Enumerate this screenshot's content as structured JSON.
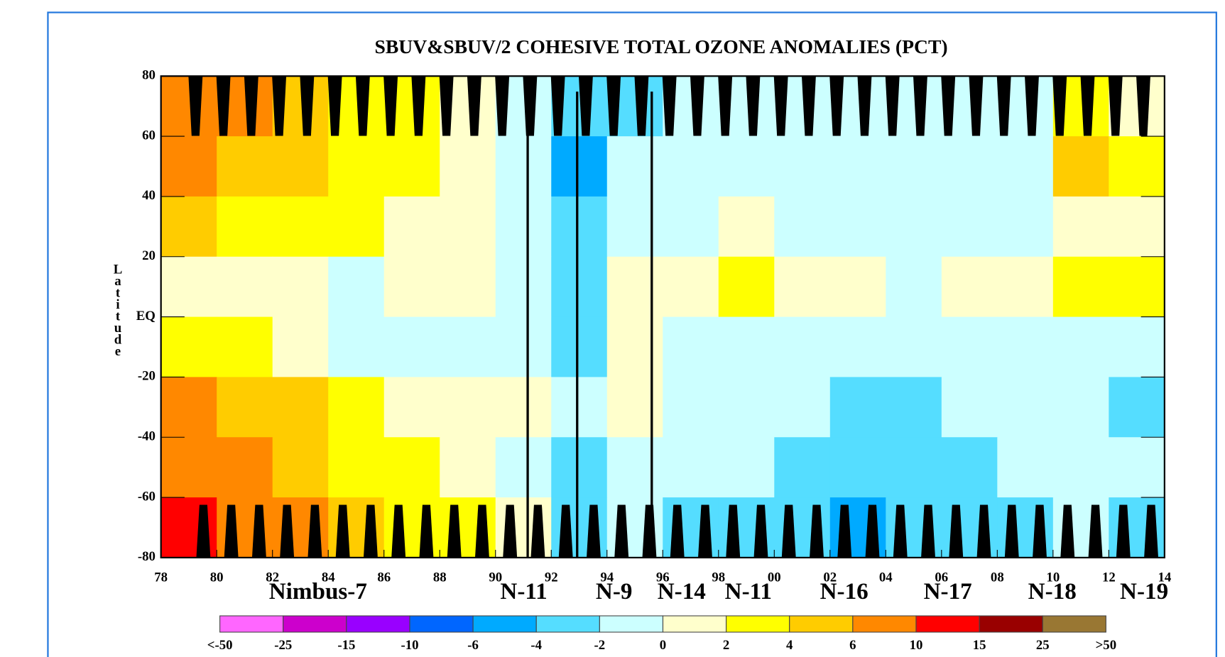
{
  "chart_data": {
    "type": "heatmap",
    "title": "SBUV&SBUV/2 COHESIVE TOTAL OZONE ANOMALIES (PCT)",
    "y_label": "Latitude",
    "xlim": [
      1978,
      2014
    ],
    "ylim": [
      -80,
      80
    ],
    "xticks": [
      {
        "value": 1978,
        "label": "78"
      },
      {
        "value": 1980,
        "label": "80"
      },
      {
        "value": 1982,
        "label": "82"
      },
      {
        "value": 1984,
        "label": "84"
      },
      {
        "value": 1986,
        "label": "86"
      },
      {
        "value": 1988,
        "label": "88"
      },
      {
        "value": 1990,
        "label": "90"
      },
      {
        "value": 1992,
        "label": "92"
      },
      {
        "value": 1994,
        "label": "94"
      },
      {
        "value": 1996,
        "label": "96"
      },
      {
        "value": 1998,
        "label": "98"
      },
      {
        "value": 2000,
        "label": "00"
      },
      {
        "value": 2002,
        "label": "02"
      },
      {
        "value": 2004,
        "label": "04"
      },
      {
        "value": 2006,
        "label": "06"
      },
      {
        "value": 2008,
        "label": "08"
      },
      {
        "value": 2010,
        "label": "10"
      },
      {
        "value": 2012,
        "label": "12"
      },
      {
        "value": 2014,
        "label": "14"
      }
    ],
    "yticks": [
      80,
      60,
      40,
      20,
      {
        "value": 0,
        "label": "EQ"
      },
      -20,
      -40,
      -60,
      -80
    ],
    "x": [
      1979,
      1981,
      1983,
      1985,
      1987,
      1989,
      1991,
      1993,
      1995,
      1997,
      1999,
      2001,
      2003,
      2005,
      2007,
      2009,
      2011,
      2013
    ],
    "y": [
      70,
      50,
      30,
      10,
      -10,
      -30,
      -50,
      -70
    ],
    "z": [
      [
        6,
        6,
        4,
        2,
        3,
        1,
        -1,
        -3,
        -4,
        -2,
        -1,
        -2,
        -2,
        -1,
        -2,
        -1,
        2,
        1
      ],
      [
        6,
        5,
        4,
        2,
        2,
        1,
        -2,
        -5,
        -2,
        -2,
        -2,
        -1,
        -2,
        -2,
        -1,
        -2,
        4,
        2
      ],
      [
        4,
        3,
        2,
        2,
        1,
        0,
        -2,
        -4,
        -1,
        -2,
        0,
        -2,
        -1,
        -1,
        -2,
        -1,
        0,
        1
      ],
      [
        1,
        0,
        0,
        -1,
        0,
        1,
        -2,
        -3,
        0,
        1,
        2,
        1,
        0,
        -1,
        0,
        1,
        2,
        2
      ],
      [
        2,
        2,
        0,
        -1,
        -1,
        -1,
        -1,
        -3,
        0,
        -1,
        -2,
        -1,
        -1,
        -2,
        -2,
        -1,
        -1,
        -2
      ],
      [
        6,
        4,
        4,
        2,
        1,
        1,
        0,
        -2,
        0,
        -1,
        -2,
        -2,
        -3,
        -3,
        -2,
        -2,
        -2,
        -3
      ],
      [
        8,
        6,
        5,
        3,
        2,
        1,
        -1,
        -3,
        -1,
        -2,
        -2,
        -3,
        -4,
        -3,
        -3,
        -2,
        -2,
        -2
      ],
      [
        10,
        7,
        6,
        4,
        3,
        2,
        0,
        -3,
        -2,
        -3,
        -3,
        -4,
        -5,
        -4,
        -3,
        -3,
        -2,
        -3
      ]
    ],
    "levels": [
      {
        "value": -50,
        "label": "<-50"
      },
      -25,
      -15,
      -10,
      -6,
      -4,
      -2,
      0,
      2,
      4,
      6,
      10,
      15,
      25,
      {
        "value": 50,
        "label": ">50"
      }
    ],
    "colors": [
      "#ff66ff",
      "#cc00cc",
      "#9900ff",
      "#0066ff",
      "#00aaff",
      "#55ddff",
      "#ccffff",
      "#ffffcc",
      "#ffff00",
      "#ffcc00",
      "#ff8800",
      "#ff0000",
      "#990000",
      "#997733"
    ],
    "satellites": [
      "Nimbus-7",
      "N-11",
      "N-9",
      "N-14",
      "N-11",
      "N-16",
      "N-17",
      "N-18",
      "N-19"
    ]
  }
}
